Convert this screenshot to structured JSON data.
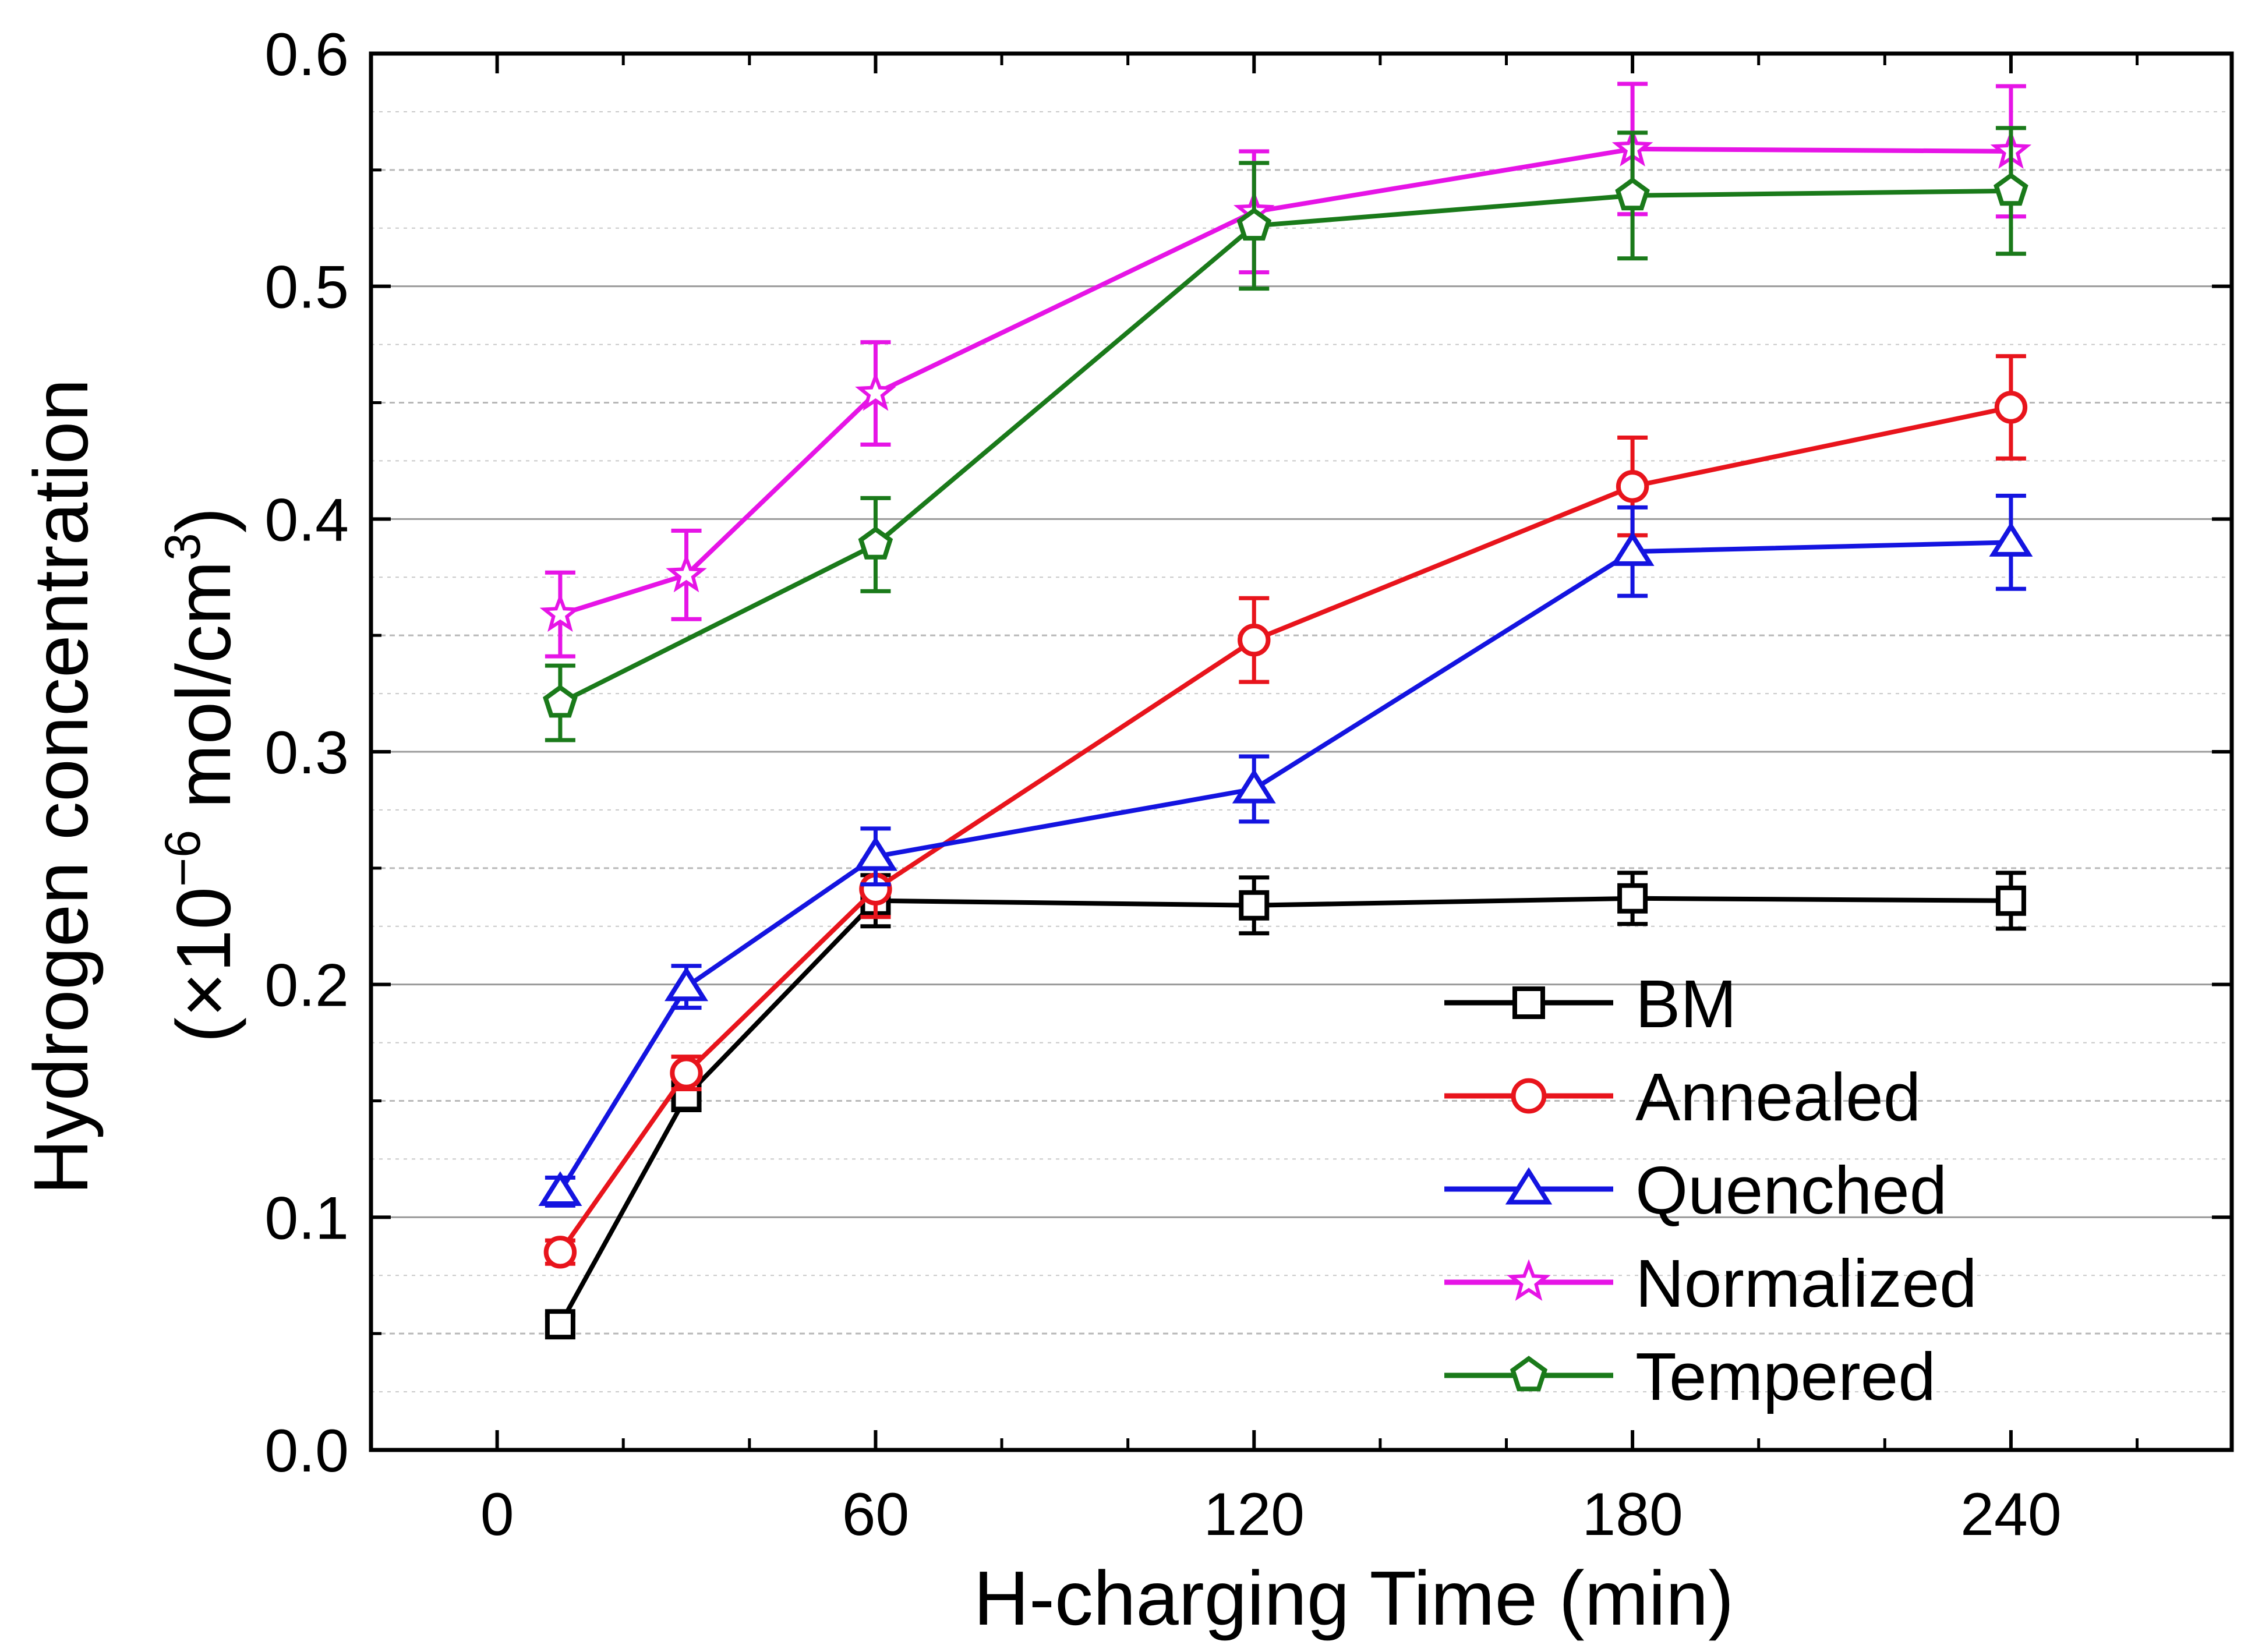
{
  "chart_data": {
    "type": "line",
    "title": "",
    "xlabel": "H-charging Time (min)",
    "ylabel": {
      "line1": "Hydrogen concentration",
      "line2_prefix": "(×10",
      "line2_exponent": "−6",
      "line2_unit": " mol/cm",
      "line2_unit_exponent": "3",
      "line2_suffix": ")"
    },
    "xlim": [
      -20,
      275
    ],
    "ylim": [
      0.0,
      0.6
    ],
    "xticks": [
      0,
      60,
      120,
      180,
      240
    ],
    "xtick_labels": [
      "0",
      "60",
      "120",
      "180",
      "240"
    ],
    "xminor_step": 20,
    "yticks": [
      0.0,
      0.1,
      0.2,
      0.3,
      0.4,
      0.5,
      0.6
    ],
    "ytick_labels": [
      "0.0",
      "0.1",
      "0.2",
      "0.3",
      "0.4",
      "0.5",
      "0.6"
    ],
    "grid_major": true,
    "grid_minor_dashed": true,
    "legend_position": "bottom-right",
    "series": [
      {
        "name": "BM",
        "color": "#000000",
        "marker": "square",
        "x": [
          10,
          30,
          60,
          120,
          180,
          240
        ],
        "values": [
          0.054,
          0.152,
          0.236,
          0.234,
          0.237,
          0.236
        ],
        "errors": [
          0.004,
          0.006,
          0.011,
          0.012,
          0.011,
          0.012
        ]
      },
      {
        "name": "Annealed",
        "color": "#e8141c",
        "marker": "circle",
        "x": [
          10,
          30,
          60,
          120,
          180,
          240
        ],
        "values": [
          0.085,
          0.162,
          0.241,
          0.348,
          0.414,
          0.448
        ],
        "errors": [
          0.005,
          0.007,
          0.012,
          0.018,
          0.021,
          0.022
        ]
      },
      {
        "name": "Quenched",
        "color": "#1414e0",
        "marker": "triangle",
        "x": [
          10,
          30,
          60,
          120,
          180,
          240
        ],
        "values": [
          0.111,
          0.199,
          0.255,
          0.284,
          0.386,
          0.39
        ],
        "errors": [
          0.006,
          0.009,
          0.012,
          0.014,
          0.019,
          0.02
        ]
      },
      {
        "name": "Normalized",
        "color": "#e614e6",
        "marker": "star",
        "x": [
          10,
          30,
          60,
          120,
          180,
          240
        ],
        "values": [
          0.359,
          0.376,
          0.454,
          0.532,
          0.559,
          0.558
        ],
        "errors": [
          0.018,
          0.019,
          0.022,
          0.026,
          0.028,
          0.028
        ]
      },
      {
        "name": "Tempered",
        "color": "#1a7a1a",
        "marker": "pentagon",
        "x": [
          10,
          60,
          120,
          180,
          240
        ],
        "values": [
          0.321,
          0.389,
          0.526,
          0.539,
          0.541
        ],
        "errors": [
          0.016,
          0.02,
          0.027,
          0.027,
          0.027
        ]
      }
    ]
  }
}
